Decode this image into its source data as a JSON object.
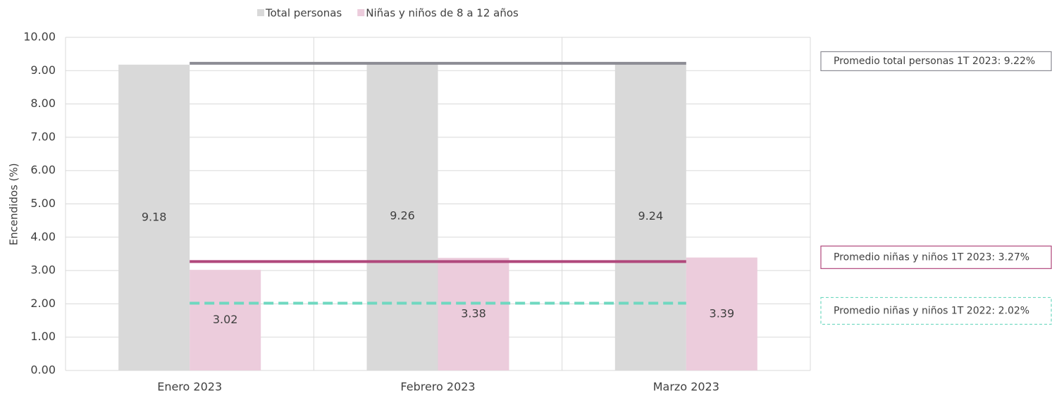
{
  "chart_data": {
    "type": "bar",
    "y_label": "Encendidos (%)",
    "categories": [
      "Enero 2023",
      "Febrero 2023",
      "Marzo 2023"
    ],
    "series": [
      {
        "name": "Total personas",
        "color": "#d9d9d9",
        "values": [
          9.18,
          9.26,
          9.24
        ]
      },
      {
        "name": "Niñas y niños de 8 a 12 años",
        "color": "#ecccdc",
        "values": [
          3.02,
          3.38,
          3.39
        ]
      }
    ],
    "reference_lines": [
      {
        "value": 9.22,
        "label": "Promedio total personas 1T 2023: 9.22%",
        "color": "#8c8c94",
        "dashed": false
      },
      {
        "value": 3.27,
        "label": "Promedio niñas y niños 1T 2023: 3.27%",
        "color": "#b0487c",
        "dashed": false
      },
      {
        "value": 2.02,
        "label": "Promedio niñas y niños 1T 2022: 2.02%",
        "color": "#6fd8c0",
        "dashed": true
      }
    ],
    "ylim": [
      0,
      10
    ],
    "yticks": [
      {
        "value": 0,
        "label": "0.00"
      },
      {
        "value": 1,
        "label": "1.00"
      },
      {
        "value": 2,
        "label": "2.00"
      },
      {
        "value": 3,
        "label": "3.00"
      },
      {
        "value": 4,
        "label": "4.00"
      },
      {
        "value": 5,
        "label": "5.00"
      },
      {
        "value": 6,
        "label": "6.00"
      },
      {
        "value": 7,
        "label": "7.00"
      },
      {
        "value": 8,
        "label": "8.00"
      },
      {
        "value": 9,
        "label": "9.00"
      },
      {
        "value": 10,
        "label": "10.00"
      }
    ],
    "grid": true,
    "legend": "top"
  }
}
